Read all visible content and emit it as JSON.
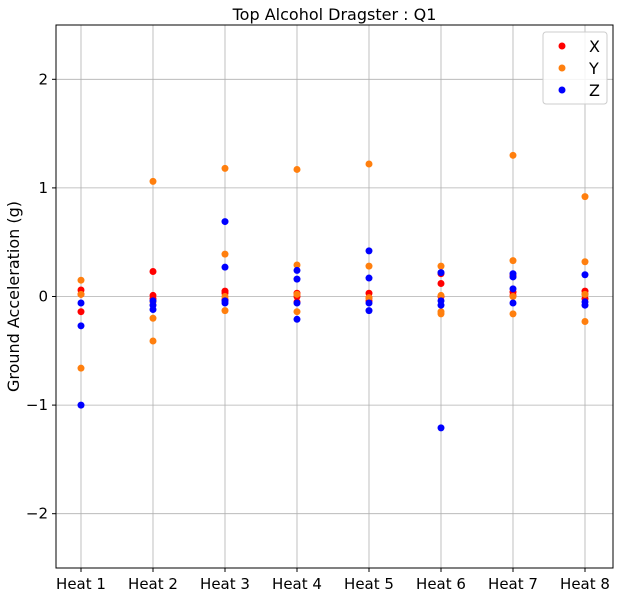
{
  "chart_data": {
    "type": "scatter",
    "title": "Top Alcohol Dragster : Q1",
    "xlabel": "",
    "ylabel": "Ground Acceleration (g)",
    "categories": [
      "Heat 1",
      "Heat 2",
      "Heat 3",
      "Heat 4",
      "Heat 5",
      "Heat 6",
      "Heat 7",
      "Heat 8"
    ],
    "ylim": [
      -2.5,
      2.5
    ],
    "yticks": [
      -2,
      -1,
      0,
      1,
      2
    ],
    "ytick_labels": [
      "−2",
      "−1",
      "0",
      "1",
      "2"
    ],
    "grid": true,
    "legend_position": "top-right",
    "series": [
      {
        "name": "X",
        "color": "#ff0000",
        "points": [
          [
            0,
            0.06
          ],
          [
            0,
            0.02
          ],
          [
            0,
            -0.14
          ],
          [
            1,
            0.23
          ],
          [
            1,
            0.01
          ],
          [
            1,
            -0.02
          ],
          [
            2,
            0.05
          ],
          [
            2,
            0.03
          ],
          [
            2,
            -0.03
          ],
          [
            3,
            0.03
          ],
          [
            3,
            0.0
          ],
          [
            3,
            -0.05
          ],
          [
            4,
            0.03
          ],
          [
            4,
            -0.01
          ],
          [
            4,
            -0.04
          ],
          [
            5,
            0.21
          ],
          [
            5,
            0.12
          ],
          [
            5,
            0.0
          ],
          [
            6,
            0.19
          ],
          [
            6,
            0.04
          ],
          [
            6,
            0.01
          ],
          [
            7,
            0.05
          ],
          [
            7,
            0.02
          ],
          [
            7,
            -0.02
          ]
        ]
      },
      {
        "name": "Y",
        "color": "#ff7f0e",
        "points": [
          [
            0,
            0.15
          ],
          [
            0,
            0.02
          ],
          [
            0,
            -0.66
          ],
          [
            1,
            1.06
          ],
          [
            1,
            -0.05
          ],
          [
            1,
            -0.2
          ],
          [
            1,
            -0.41
          ],
          [
            2,
            1.18
          ],
          [
            2,
            0.39
          ],
          [
            2,
            0.0
          ],
          [
            2,
            -0.13
          ],
          [
            3,
            1.17
          ],
          [
            3,
            0.29
          ],
          [
            3,
            0.02
          ],
          [
            3,
            -0.14
          ],
          [
            4,
            1.22
          ],
          [
            4,
            0.28
          ],
          [
            4,
            -0.01
          ],
          [
            5,
            0.28
          ],
          [
            5,
            0.01
          ],
          [
            5,
            -0.14
          ],
          [
            5,
            -0.16
          ],
          [
            6,
            1.3
          ],
          [
            6,
            0.33
          ],
          [
            6,
            0.0
          ],
          [
            6,
            -0.16
          ],
          [
            7,
            0.92
          ],
          [
            7,
            0.32
          ],
          [
            7,
            0.02
          ],
          [
            7,
            -0.23
          ]
        ]
      },
      {
        "name": "Z",
        "color": "#0000ff",
        "points": [
          [
            0,
            -0.06
          ],
          [
            0,
            -0.27
          ],
          [
            0,
            -1.0
          ],
          [
            1,
            -0.04
          ],
          [
            1,
            -0.08
          ],
          [
            1,
            -0.12
          ],
          [
            2,
            0.69
          ],
          [
            2,
            0.27
          ],
          [
            2,
            -0.04
          ],
          [
            2,
            -0.06
          ],
          [
            3,
            0.24
          ],
          [
            3,
            0.16
          ],
          [
            3,
            -0.06
          ],
          [
            3,
            -0.21
          ],
          [
            4,
            0.42
          ],
          [
            4,
            0.17
          ],
          [
            4,
            -0.06
          ],
          [
            4,
            -0.13
          ],
          [
            5,
            0.22
          ],
          [
            5,
            -0.04
          ],
          [
            5,
            -0.08
          ],
          [
            5,
            -1.21
          ],
          [
            6,
            0.21
          ],
          [
            6,
            0.18
          ],
          [
            6,
            0.07
          ],
          [
            6,
            -0.06
          ],
          [
            7,
            0.2
          ],
          [
            7,
            -0.05
          ],
          [
            7,
            -0.08
          ]
        ]
      }
    ]
  }
}
